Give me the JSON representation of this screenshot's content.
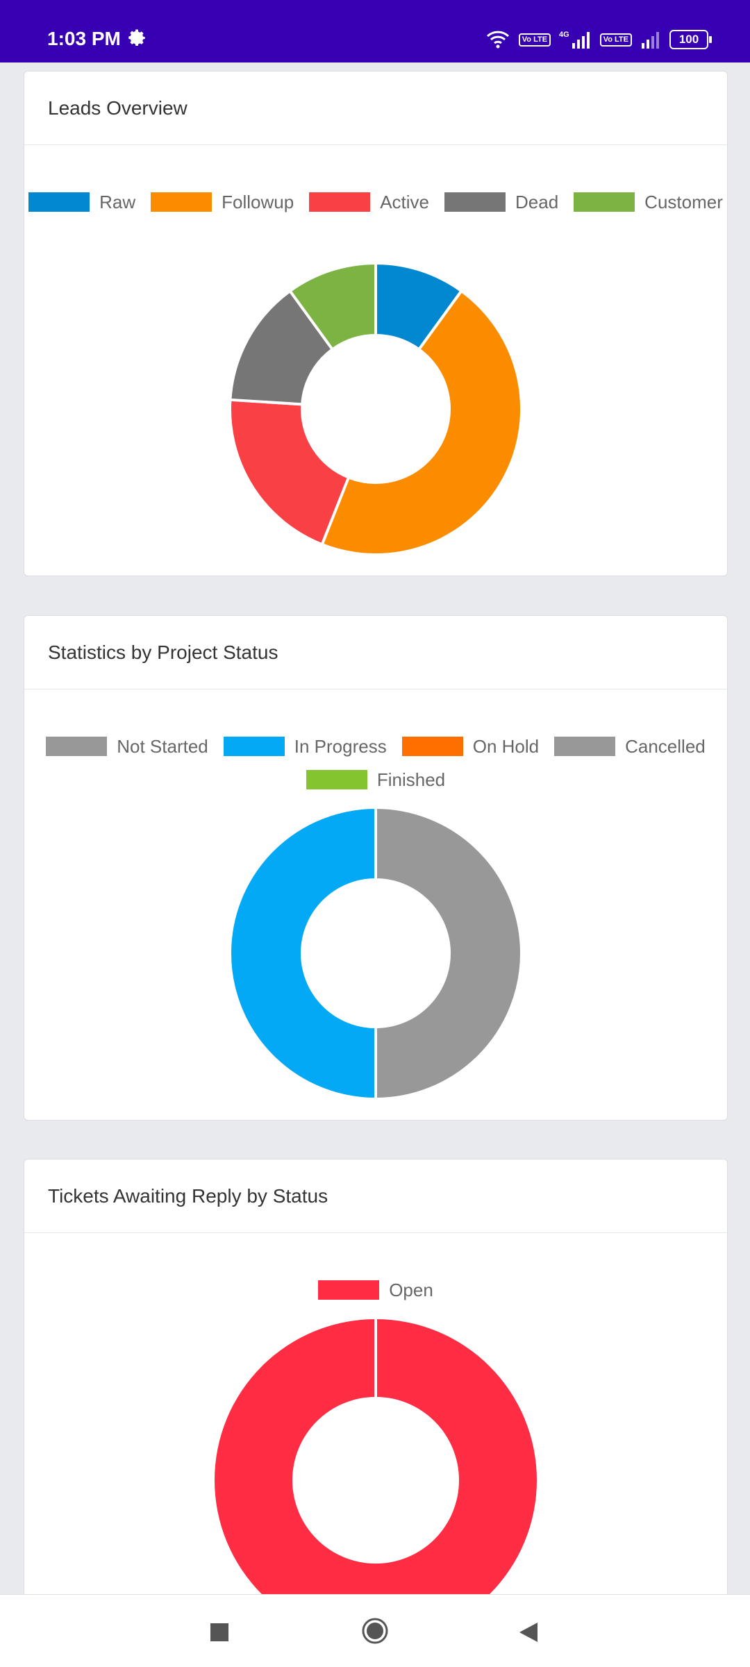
{
  "status_bar": {
    "time": "1:03 PM",
    "lte1": "Vo LTE",
    "net_type": "4G",
    "lte2": "Vo LTE",
    "battery": "100"
  },
  "cards": [
    {
      "title": "Leads Overview",
      "chart_data": {
        "type": "pie",
        "categories": [
          "Raw",
          "Followup",
          "Active",
          "Dead",
          "Customer"
        ],
        "values": [
          10,
          46,
          20,
          14,
          10
        ],
        "colors": [
          "#0288d1",
          "#fb8c00",
          "#f94145",
          "#767676",
          "#7cb342"
        ],
        "legend": "top"
      }
    },
    {
      "title": "Statistics by Project Status",
      "chart_data": {
        "type": "pie",
        "categories": [
          "Not Started",
          "In Progress",
          "On Hold",
          "Cancelled",
          "Finished"
        ],
        "values": [
          1,
          1,
          0,
          0,
          0
        ],
        "colors": [
          "#989898",
          "#03a9f4",
          "#ff6f00",
          "#989898",
          "#84c52f"
        ],
        "legend": "top"
      }
    },
    {
      "title": "Tickets Awaiting Reply by Status",
      "chart_data": {
        "type": "pie",
        "categories": [
          "Open"
        ],
        "values": [
          1
        ],
        "colors": [
          "#ff2d43"
        ],
        "legend": "top"
      }
    }
  ],
  "nav": {
    "recent": "square-icon",
    "home": "circle-icon",
    "back": "triangle-back-icon"
  }
}
